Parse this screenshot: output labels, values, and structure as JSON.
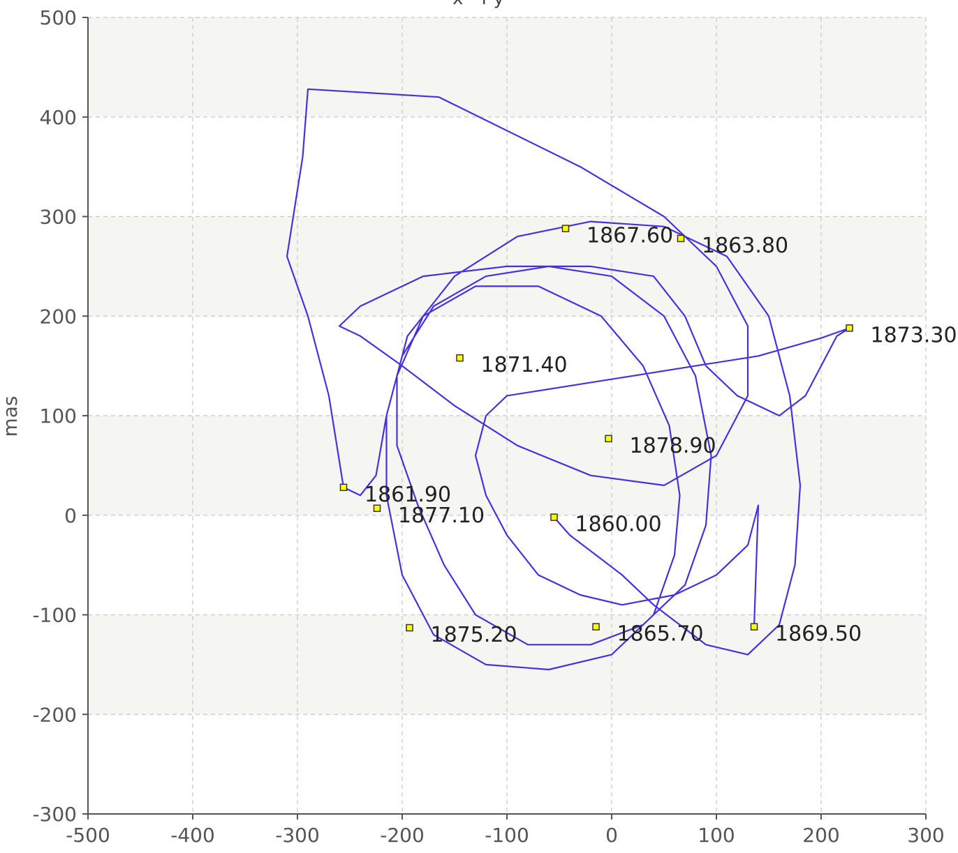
{
  "colors": {
    "plot_bg": "#f5f5f2",
    "band_bg": "#ffffff",
    "grid": "#c8c8c8",
    "series": "#4a2fe0",
    "marker_fill": "#ffff00",
    "marker_stroke": "#333333"
  },
  "chart_data": {
    "type": "line",
    "title": "x - f y",
    "ylabel": "mas",
    "xlabel": "",
    "xlim": [
      -500,
      300
    ],
    "ylim": [
      -300,
      500
    ],
    "x_ticks": [
      -500,
      -400,
      -300,
      -200,
      -100,
      0,
      100,
      200,
      300
    ],
    "y_ticks": [
      -300,
      -200,
      -100,
      0,
      100,
      200,
      300,
      400,
      500
    ],
    "grid": true,
    "alternating_bands": true,
    "series": [
      {
        "points": [
          [
            -55,
            -2
          ],
          [
            -40,
            -20
          ],
          [
            -15,
            -40
          ],
          [
            10,
            -60
          ],
          [
            40,
            -90
          ],
          [
            90,
            -130
          ],
          [
            130,
            -140
          ],
          [
            160,
            -110
          ],
          [
            175,
            -50
          ],
          [
            180,
            30
          ],
          [
            170,
            120
          ],
          [
            150,
            200
          ],
          [
            110,
            260
          ],
          [
            50,
            290
          ],
          [
            -20,
            295
          ],
          [
            -90,
            280
          ],
          [
            -150,
            240
          ],
          [
            -195,
            180
          ],
          [
            -215,
            100
          ],
          [
            -215,
            20
          ],
          [
            -200,
            -60
          ],
          [
            -170,
            -120
          ],
          [
            -120,
            -150
          ],
          [
            -60,
            -155
          ],
          [
            0,
            -140
          ],
          [
            40,
            -100
          ],
          [
            60,
            -40
          ],
          [
            65,
            20
          ],
          [
            55,
            90
          ],
          [
            30,
            150
          ],
          [
            -10,
            200
          ],
          [
            -70,
            230
          ],
          [
            -130,
            230
          ],
          [
            -180,
            200
          ],
          [
            -205,
            140
          ],
          [
            -205,
            70
          ],
          [
            -185,
            10
          ],
          [
            -160,
            -50
          ],
          [
            -130,
            -100
          ],
          [
            -80,
            -130
          ],
          [
            -20,
            -130
          ],
          [
            30,
            -110
          ],
          [
            70,
            -70
          ],
          [
            90,
            -10
          ],
          [
            95,
            60
          ],
          [
            80,
            140
          ],
          [
            50,
            200
          ],
          [
            0,
            240
          ],
          [
            -60,
            250
          ],
          [
            -120,
            240
          ],
          [
            -170,
            210
          ],
          [
            -200,
            160
          ],
          [
            -215,
            100
          ],
          [
            -225,
            40
          ],
          [
            -240,
            20
          ],
          [
            -256,
            28
          ],
          [
            -270,
            120
          ],
          [
            -290,
            200
          ],
          [
            -310,
            260
          ],
          [
            -295,
            360
          ],
          [
            -290,
            428
          ],
          [
            -165,
            420
          ],
          [
            -30,
            350
          ],
          [
            50,
            300
          ],
          [
            100,
            250
          ],
          [
            130,
            190
          ],
          [
            130,
            120
          ],
          [
            100,
            60
          ],
          [
            50,
            30
          ],
          [
            -20,
            40
          ],
          [
            -90,
            70
          ],
          [
            -150,
            110
          ],
          [
            -200,
            150
          ],
          [
            -240,
            180
          ],
          [
            -260,
            190
          ],
          [
            -240,
            210
          ],
          [
            -180,
            240
          ],
          [
            -100,
            250
          ],
          [
            -20,
            250
          ],
          [
            40,
            240
          ],
          [
            70,
            200
          ],
          [
            90,
            150
          ],
          [
            120,
            120
          ],
          [
            160,
            100
          ],
          [
            185,
            120
          ],
          [
            200,
            150
          ],
          [
            215,
            180
          ],
          [
            227,
            188
          ],
          [
            200,
            178
          ],
          [
            140,
            160
          ],
          [
            80,
            150
          ],
          [
            20,
            140
          ],
          [
            -40,
            130
          ],
          [
            -100,
            120
          ],
          [
            -120,
            100
          ],
          [
            -130,
            60
          ],
          [
            -120,
            20
          ],
          [
            -100,
            -20
          ],
          [
            -70,
            -60
          ],
          [
            -30,
            -80
          ],
          [
            10,
            -90
          ],
          [
            60,
            -80
          ],
          [
            100,
            -60
          ],
          [
            130,
            -30
          ],
          [
            140,
            10
          ],
          [
            136,
            -112
          ]
        ]
      }
    ],
    "labeled_points": [
      {
        "x": -55,
        "y": -2,
        "label": "1860.00"
      },
      {
        "x": -256,
        "y": 28,
        "label": "1861.90"
      },
      {
        "x": 66,
        "y": 278,
        "label": "1863.80"
      },
      {
        "x": -15,
        "y": -112,
        "label": "1865.70"
      },
      {
        "x": -44,
        "y": 288,
        "label": "1867.60"
      },
      {
        "x": 136,
        "y": -112,
        "label": "1869.50"
      },
      {
        "x": -145,
        "y": 158,
        "label": "1871.40"
      },
      {
        "x": 227,
        "y": 188,
        "label": "1873.30"
      },
      {
        "x": -193,
        "y": -113,
        "label": "1875.20"
      },
      {
        "x": -224,
        "y": 7,
        "label": "1877.10"
      },
      {
        "x": -3,
        "y": 77,
        "label": "1878.90"
      }
    ]
  }
}
